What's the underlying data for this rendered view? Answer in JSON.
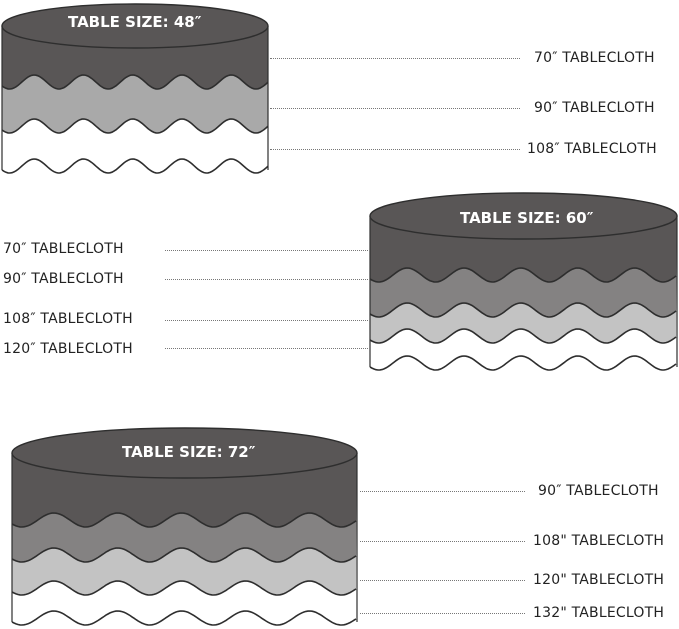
{
  "colors": {
    "dark": "#595656",
    "mid": "#848282",
    "gray48": "#a9a9a9",
    "light": "#c3c3c3",
    "white": "#ffffff",
    "outline": "#2e2e2e"
  },
  "tables": [
    {
      "title": "TABLE SIZE: 48″",
      "labels": [
        "70″ TABLECLOTH",
        "90″ TABLECLOTH",
        "108″ TABLECLOTH"
      ]
    },
    {
      "title": "TABLE SIZE: 60″",
      "labels": [
        "70″ TABLECLOTH",
        "90″ TABLECLOTH",
        "108″ TABLECLOTH",
        "120″ TABLECLOTH"
      ]
    },
    {
      "title": "TABLE SIZE: 72″",
      "labels": [
        "90″ TABLECLOTH",
        "108\" TABLECLOTH",
        "120\" TABLECLOTH",
        "132\" TABLECLOTH"
      ]
    }
  ]
}
